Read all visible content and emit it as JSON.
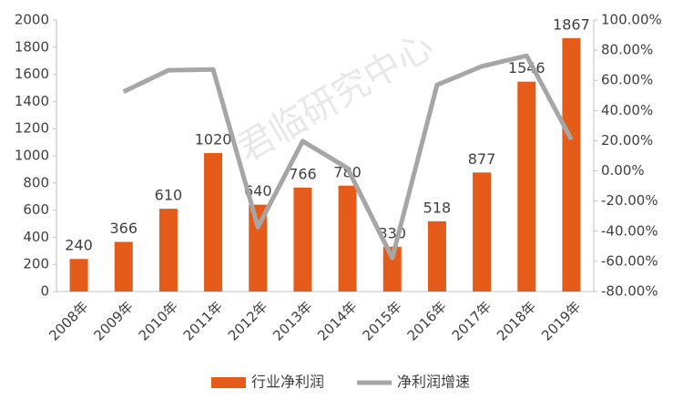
{
  "chart_data": {
    "type": "bar",
    "watermark": "君临研究中心",
    "categories": [
      "2008年",
      "2009年",
      "2010年",
      "2011年",
      "2012年",
      "2013年",
      "2014年",
      "2015年",
      "2016年",
      "2017年",
      "2018年",
      "2019年"
    ],
    "series": [
      {
        "name": "行业净利润",
        "type": "bar",
        "color": "#e55b1a",
        "values": [
          240,
          366,
          610,
          1020,
          640,
          766,
          780,
          330,
          518,
          877,
          1546,
          1867
        ]
      },
      {
        "name": "净利润增速",
        "type": "line",
        "axis": "y2",
        "color": "#a6a6a6",
        "values": [
          null,
          52.5,
          66.7,
          67.2,
          -37.3,
          19.7,
          1.8,
          -57.7,
          57.0,
          69.3,
          76.3,
          20.8
        ]
      }
    ],
    "ylim": [
      0,
      2000
    ],
    "yticks": [
      0,
      200,
      400,
      600,
      800,
      1000,
      1200,
      1400,
      1600,
      1800,
      2000
    ],
    "y2lim": [
      -80,
      100
    ],
    "y2ticks": [
      {
        "value": -80,
        "label": "-80.00%"
      },
      {
        "value": -60,
        "label": "-60.00%"
      },
      {
        "value": -40,
        "label": "-40.00%"
      },
      {
        "value": -20,
        "label": "-20.00%"
      },
      {
        "value": 0,
        "label": "0.00%"
      },
      {
        "value": 20,
        "label": "20.00%"
      },
      {
        "value": 40,
        "label": "40.00%"
      },
      {
        "value": 60,
        "label": "60.00%"
      },
      {
        "value": 80,
        "label": "80.00%"
      },
      {
        "value": 100,
        "label": "100.00%"
      }
    ],
    "grid": false,
    "legend": "bottom"
  }
}
